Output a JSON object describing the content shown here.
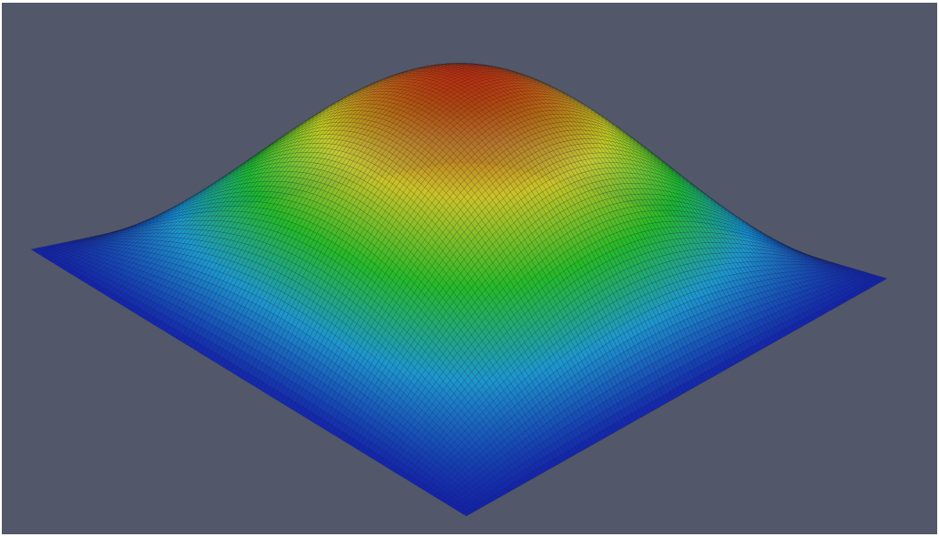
{
  "viewport": {
    "background": "#525769"
  },
  "surface": {
    "representation": "wireframe",
    "shape": "smooth bump (peak at center)",
    "grid_resolution": 120,
    "colormap": [
      "#0a1cb4",
      "#16a0dc",
      "#1ec81e",
      "#dcd21e",
      "#be1e0a"
    ]
  }
}
